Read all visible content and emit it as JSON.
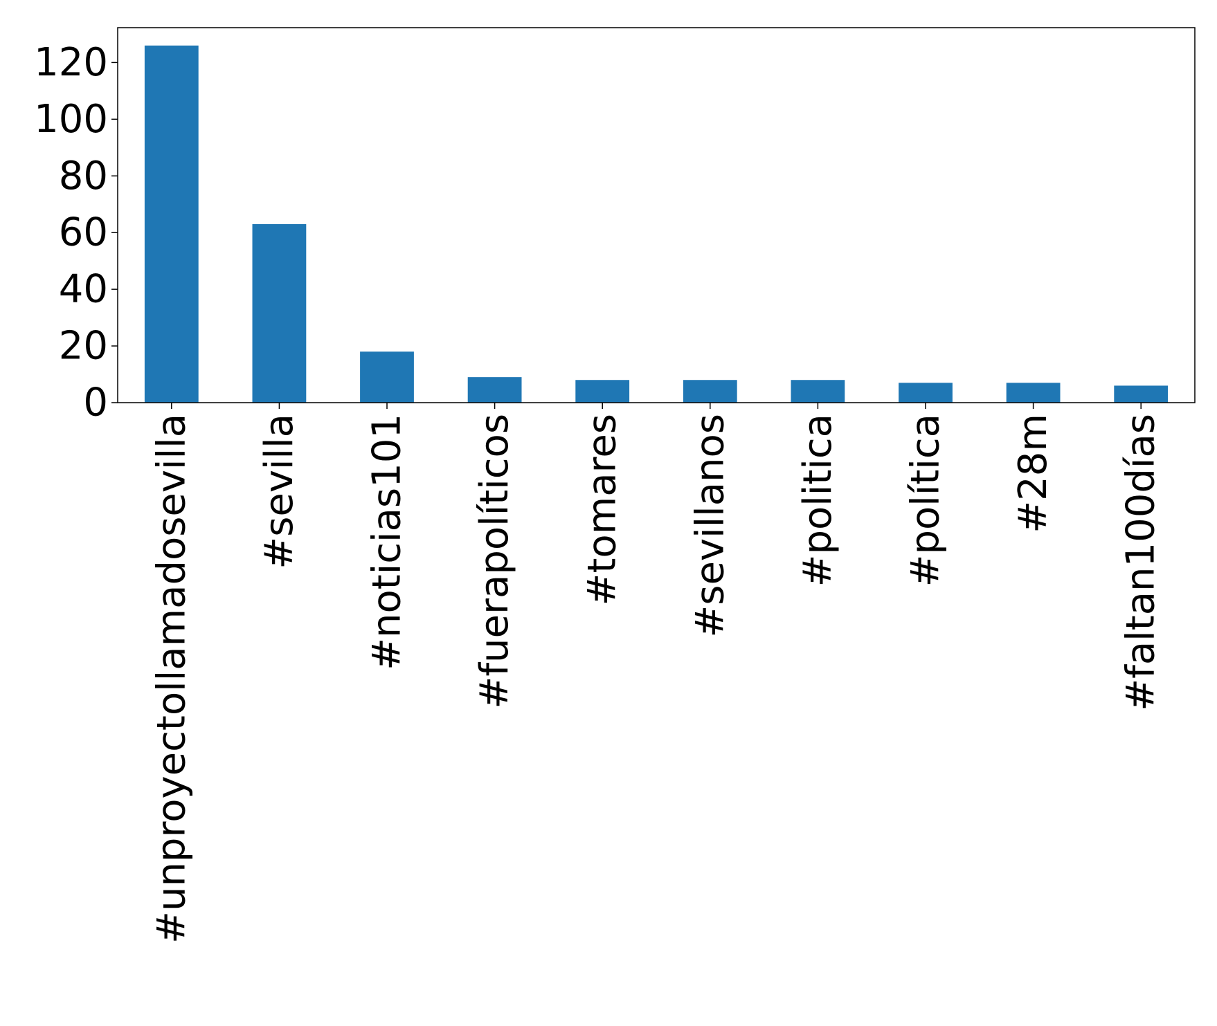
{
  "chart_data": {
    "type": "bar",
    "title": "",
    "xlabel": "",
    "ylabel": "",
    "categories": [
      "#unproyectollamadosevilla",
      "#sevilla",
      "#noticias101",
      "#fuerapolíticos",
      "#tomares",
      "#sevillanos",
      "#politica",
      "#política",
      "#28m",
      "#faltan100días"
    ],
    "values": [
      126,
      63,
      18,
      9,
      8,
      8,
      8,
      7,
      7,
      6
    ],
    "yticks": [
      0,
      20,
      40,
      60,
      80,
      100,
      120
    ],
    "ytick_labels": [
      "0",
      "20",
      "40",
      "60",
      "80",
      "100",
      "120"
    ],
    "ylim": [
      0,
      132.3
    ],
    "bar_color": "#1f77b4",
    "grid": false,
    "legend": "none"
  }
}
